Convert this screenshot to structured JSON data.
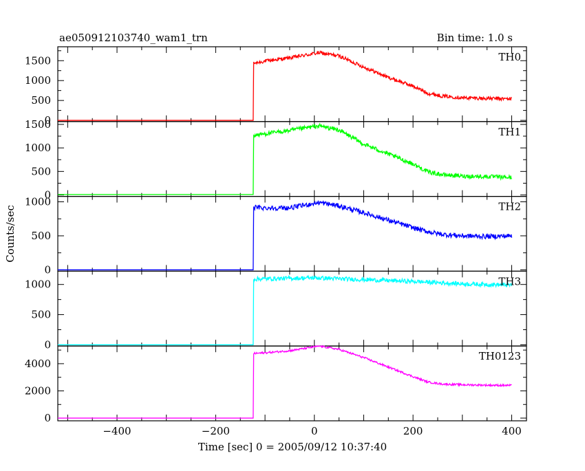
{
  "header": {
    "title": "ae050912103740_wam1_trn",
    "bin_time": "Bin time: 1.0 s"
  },
  "axes": {
    "ylabel": "Counts/sec",
    "xlabel": "Time [sec] 0 = 2005/09/12 10:37:40",
    "xlim": [
      -520,
      430
    ],
    "x_ticks": [
      -400,
      -200,
      0,
      200,
      400
    ],
    "x_tick_labels": [
      "−400",
      "−200",
      "0",
      "200",
      "400"
    ]
  },
  "chart_data": {
    "type": "line",
    "x_range_data": [
      -520,
      400
    ],
    "trigger_time": -123,
    "peak_time": 10,
    "panels": [
      {
        "name": "TH0",
        "color": "#ff0000",
        "ylim": [
          -30,
          1850
        ],
        "y_ticks": [
          0,
          500,
          1000,
          1500
        ],
        "y_tick_labels": [
          "0",
          "500",
          "1000",
          "1500"
        ],
        "pre_level": 0,
        "profile": [
          [
            -123,
            1430
          ],
          [
            -100,
            1490
          ],
          [
            -50,
            1570
          ],
          [
            10,
            1700
          ],
          [
            50,
            1620
          ],
          [
            100,
            1340
          ],
          [
            150,
            1080
          ],
          [
            200,
            860
          ],
          [
            230,
            680
          ],
          [
            260,
            610
          ],
          [
            300,
            570
          ],
          [
            350,
            550
          ],
          [
            400,
            540
          ]
        ],
        "noise": 45
      },
      {
        "name": "TH1",
        "color": "#00ff00",
        "ylim": [
          -30,
          1560
        ],
        "y_ticks": [
          0,
          500,
          1000,
          1500
        ],
        "y_tick_labels": [
          "0",
          "500",
          "1000",
          "1500"
        ],
        "pre_level": 10,
        "profile": [
          [
            -123,
            1270
          ],
          [
            -100,
            1300
          ],
          [
            -50,
            1370
          ],
          [
            10,
            1470
          ],
          [
            50,
            1380
          ],
          [
            100,
            1080
          ],
          [
            150,
            870
          ],
          [
            200,
            660
          ],
          [
            230,
            490
          ],
          [
            260,
            430
          ],
          [
            300,
            400
          ],
          [
            350,
            390
          ],
          [
            400,
            370
          ]
        ],
        "noise": 45
      },
      {
        "name": "TH2",
        "color": "#0000ff",
        "ylim": [
          -20,
          1080
        ],
        "y_ticks": [
          0,
          500,
          1000
        ],
        "y_tick_labels": [
          "0",
          "500",
          "1000"
        ],
        "pre_level": 0,
        "profile": [
          [
            -123,
            920
          ],
          [
            -100,
            910
          ],
          [
            -50,
            910
          ],
          [
            10,
            990
          ],
          [
            50,
            940
          ],
          [
            100,
            840
          ],
          [
            150,
            730
          ],
          [
            200,
            620
          ],
          [
            230,
            560
          ],
          [
            260,
            520
          ],
          [
            300,
            500
          ],
          [
            350,
            490
          ],
          [
            400,
            500
          ]
        ],
        "noise": 35
      },
      {
        "name": "TH3",
        "color": "#00ffff",
        "ylim": [
          -20,
          1220
        ],
        "y_ticks": [
          0,
          500,
          1000
        ],
        "y_tick_labels": [
          "0",
          "500",
          "1000"
        ],
        "pre_level": 0,
        "profile": [
          [
            -123,
            1090
          ],
          [
            0,
            1110
          ],
          [
            100,
            1080
          ],
          [
            200,
            1050
          ],
          [
            300,
            1010
          ],
          [
            400,
            990
          ]
        ],
        "noise": 35
      },
      {
        "name": "TH0123",
        "color": "#ff00ff",
        "ylim": [
          -200,
          5300
        ],
        "y_ticks": [
          0,
          2000,
          4000
        ],
        "y_tick_labels": [
          "0",
          "2000",
          "4000"
        ],
        "pre_level": 0,
        "profile": [
          [
            -123,
            4750
          ],
          [
            -100,
            4800
          ],
          [
            -50,
            4950
          ],
          [
            10,
            5300
          ],
          [
            50,
            5050
          ],
          [
            100,
            4450
          ],
          [
            150,
            3750
          ],
          [
            200,
            3050
          ],
          [
            230,
            2650
          ],
          [
            260,
            2500
          ],
          [
            300,
            2450
          ],
          [
            350,
            2420
          ],
          [
            400,
            2400
          ]
        ],
        "noise": 70
      }
    ]
  }
}
